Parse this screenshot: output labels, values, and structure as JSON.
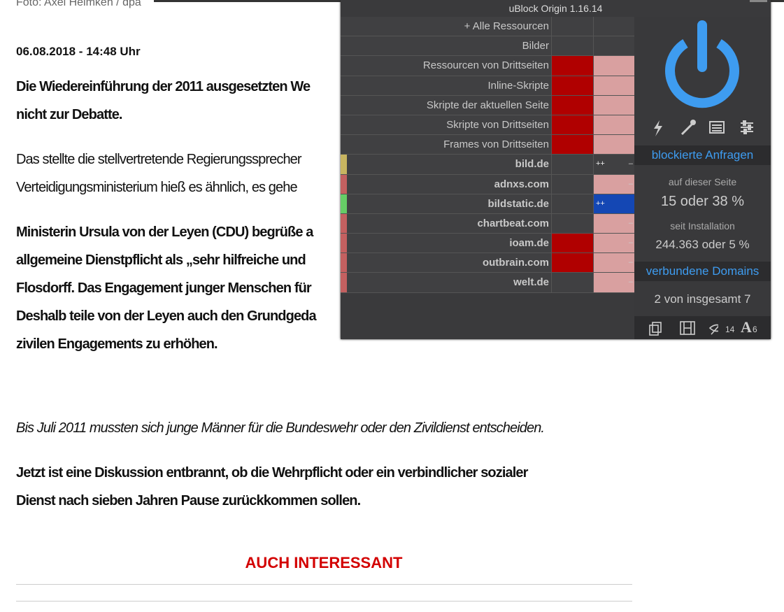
{
  "article": {
    "caption": "Foto: Axel Heimken / dpa",
    "date": "06.08.2018 - 14:48 Uhr",
    "lead": [
      "Die Wiedereinführung der 2011 ausgesetzten We",
      "nicht zur Debatte."
    ],
    "paragraph_1": [
      "Das stellte die stellvertretende Regierungssprecher",
      "Verteidigungsministerium hieß es ähnlich, es gehe"
    ],
    "paragraph_2": [
      "Ministerin Ursula von der Leyen (CDU) begrüße a",
      "allgemeine Dienstpflicht als „sehr hilfreiche und",
      "Flosdorff. Das Engagement junger Menschen für",
      "Deshalb teile von der Leyen auch den Grundgeda",
      "zivilen Engagements zu erhöhen."
    ],
    "photo_caption": "Bis Juli 2011 mussten sich junge Männer für die Bundeswehr oder den Zivildienst entscheiden.",
    "paragraph_3": [
      "Jetzt ist eine Diskussion entbrannt, ob die Wehrpflicht oder ein verbindlicher sozialer",
      "Dienst nach sieben Jahren Pause zurückkommen sollen."
    ],
    "related_heading": "AUCH INTERESSANT"
  },
  "popup": {
    "title": "uBlock Origin 1.16.14",
    "rows": [
      {
        "label": "+ Alle Ressourcen"
      },
      {
        "label": "Bilder"
      },
      {
        "label": "Ressourcen von Drittseiten"
      },
      {
        "label": "Inline-Skripte"
      },
      {
        "label": "Skripte der aktuellen Seite"
      },
      {
        "label": "Skripte von Drittseiten"
      },
      {
        "label": "Frames von Drittseiten"
      },
      {
        "label": "bild.de",
        "local": "++",
        "flag": "–"
      },
      {
        "label": "adnxs.com",
        "flag": "–"
      },
      {
        "label": "bildstatic.de",
        "local": "++"
      },
      {
        "label": "chartbeat.com",
        "flag": "–"
      },
      {
        "label": "ioam.de",
        "flag": "–"
      },
      {
        "label": "outbrain.com",
        "flag": "–"
      },
      {
        "label": "welt.de",
        "flag": "–"
      }
    ],
    "panel": {
      "blocked_header": "blockierte Anfragen",
      "on_page_label": "auf dieser Seite",
      "on_page_value": "15 oder 38 %",
      "since_install_label": "seit Installation",
      "since_install_value": "244.363 oder 5 %",
      "domains_header": "verbundene Domains",
      "domains_value": "2 von insgesamt 7",
      "hidden_count": 14,
      "font_count": 6
    }
  }
}
